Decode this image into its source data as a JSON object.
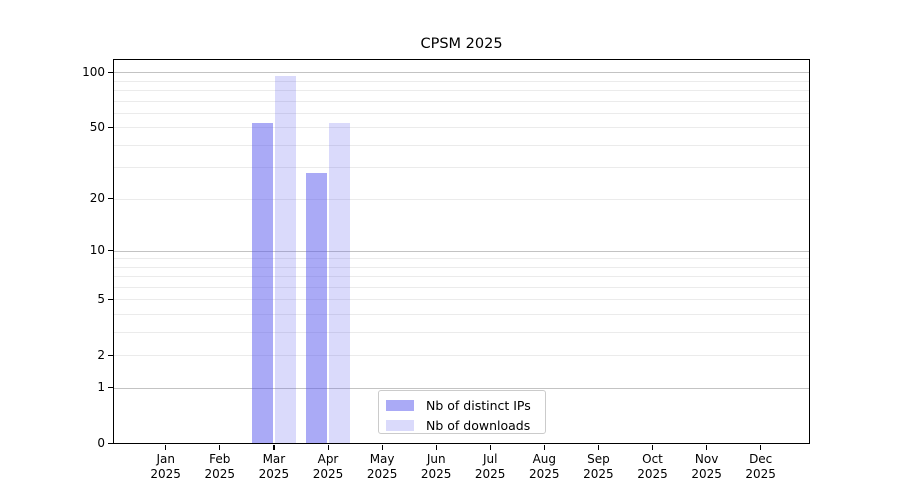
{
  "chart_data": {
    "type": "bar",
    "title": "CPSM 2025",
    "x_axis": {
      "months": [
        "Jan",
        "Feb",
        "Mar",
        "Apr",
        "May",
        "Jun",
        "Jul",
        "Aug",
        "Sep",
        "Oct",
        "Nov",
        "Dec"
      ],
      "year": "2025"
    },
    "y_axis": {
      "scale": "log1p",
      "max": 118,
      "tick_labels": [
        0,
        1,
        2,
        5,
        10,
        20,
        50,
        100
      ],
      "major_grid": [
        1,
        10,
        100
      ],
      "minor_grid": [
        2,
        3,
        4,
        5,
        6,
        7,
        8,
        9,
        20,
        30,
        40,
        50,
        60,
        70,
        80,
        90
      ]
    },
    "series": [
      {
        "name": "Nb of distinct IPs",
        "color": "rgba(85,85,238,0.5)",
        "values": [
          null,
          null,
          53,
          28,
          null,
          null,
          null,
          null,
          null,
          null,
          null,
          null
        ]
      },
      {
        "name": "Nb of downloads",
        "color": "rgba(85,85,238,0.22)",
        "values": [
          null,
          null,
          95,
          53,
          null,
          null,
          null,
          null,
          null,
          null,
          null,
          null
        ]
      }
    ],
    "legend_position": "lower center",
    "grid": "on",
    "colors": {
      "major_grid": "#c3c3c3",
      "minor_grid": "#ebebeb",
      "frame": "#000000",
      "legend_border": "#cbcbcb"
    }
  }
}
